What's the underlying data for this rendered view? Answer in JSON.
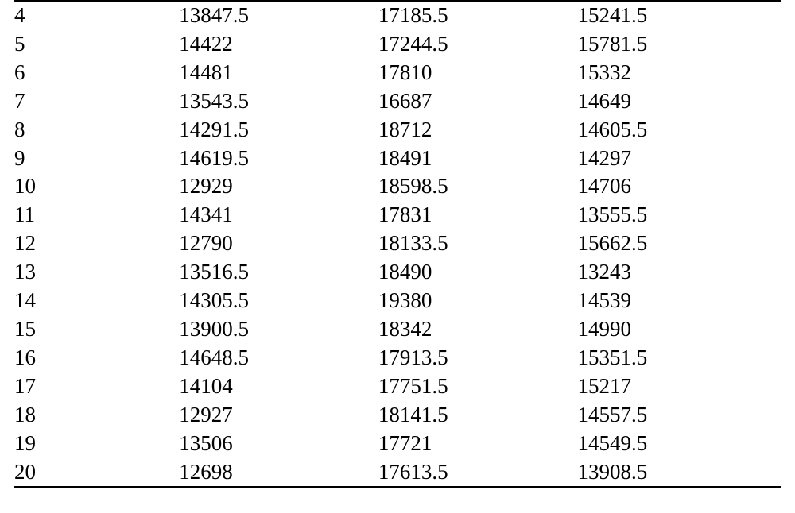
{
  "table": {
    "type": "table",
    "background_color": "#ffffff",
    "text_color": "#000000",
    "border_color": "#000000",
    "font_family": "Times New Roman",
    "font_size_pt": 20,
    "column_widths_pct": [
      21.5,
      26,
      26,
      26.5
    ],
    "column_align": [
      "left",
      "left",
      "left",
      "left"
    ],
    "rows": [
      [
        "4",
        "13847.5",
        "17185.5",
        "15241.5"
      ],
      [
        "5",
        "14422",
        "17244.5",
        "15781.5"
      ],
      [
        "6",
        "14481",
        "17810",
        "15332"
      ],
      [
        "7",
        "13543.5",
        "16687",
        "14649"
      ],
      [
        "8",
        "14291.5",
        "18712",
        "14605.5"
      ],
      [
        "9",
        "14619.5",
        "18491",
        "14297"
      ],
      [
        "10",
        "12929",
        "18598.5",
        "14706"
      ],
      [
        "11",
        "14341",
        "17831",
        "13555.5"
      ],
      [
        "12",
        "12790",
        "18133.5",
        "15662.5"
      ],
      [
        "13",
        "13516.5",
        "18490",
        "13243"
      ],
      [
        "14",
        "14305.5",
        "19380",
        "14539"
      ],
      [
        "15",
        "13900.5",
        "18342",
        "14990"
      ],
      [
        "16",
        "14648.5",
        "17913.5",
        "15351.5"
      ],
      [
        "17",
        "14104",
        "17751.5",
        "15217"
      ],
      [
        "18",
        "12927",
        "18141.5",
        "14557.5"
      ],
      [
        "19",
        "13506",
        "17721",
        "14549.5"
      ],
      [
        "20",
        "12698",
        "17613.5",
        "13908.5"
      ]
    ]
  }
}
